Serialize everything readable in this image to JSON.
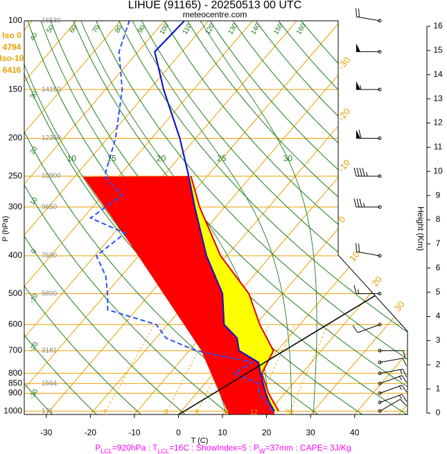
{
  "chart_data": {
    "type": "skewt",
    "title": "LIHUE (91165) - 20250513 00 UTC",
    "subtitle": "meteocentre.com",
    "ylabel": "P (hPa)",
    "xlabel": "T (C)",
    "y2label": "Height (Km)",
    "log_y": true,
    "ylim": [
      100,
      1020
    ],
    "yticks": [
      100,
      150,
      200,
      250,
      300,
      400,
      500,
      600,
      700,
      800,
      850,
      900,
      1000
    ],
    "isobar_heights": [
      16530,
      14150,
      12360,
      10900,
      9650,
      7590,
      5890,
      null,
      3181,
      null,
      1564,
      null,
      171
    ],
    "xlim": [
      -35,
      52
    ],
    "xticks": [
      -30,
      -20,
      -10,
      0,
      10,
      20,
      30,
      40
    ],
    "y2lim": [
      0,
      16
    ],
    "y2ticks": [
      0,
      1,
      2,
      3,
      4,
      5,
      6,
      7,
      8,
      9,
      10,
      11,
      12,
      13,
      14,
      15,
      16
    ],
    "iso_levels": [
      {
        "label": "Iso 0",
        "height": 4794
      },
      {
        "label": "Iso-10",
        "height": 6416
      }
    ],
    "isotherms": [
      -110,
      -100,
      -90,
      -80,
      -70,
      -60,
      -50,
      -40,
      -30,
      -20,
      -10,
      0,
      10,
      20,
      30,
      40,
      50
    ],
    "dry_adiabats": [
      -30,
      -20,
      -10,
      0,
      10,
      20,
      30,
      40,
      50,
      60,
      70,
      80,
      90,
      100,
      110,
      120,
      130,
      140,
      150,
      160
    ],
    "moist_adiabats": [
      10,
      15,
      20,
      25,
      30
    ],
    "mixing_ratios": [
      1,
      3,
      5,
      8,
      12,
      20
    ],
    "temperature": {
      "color": "#1414c8",
      "pressure": [
        1000,
        950,
        900,
        850,
        800,
        750,
        700,
        650,
        600,
        500,
        400,
        300,
        250,
        200,
        150,
        120,
        100
      ],
      "values": [
        21.1,
        18.3,
        15.7,
        13.2,
        10.6,
        8.0,
        1.3,
        -1.6,
        -7.2,
        -13.6,
        -24.6,
        -36.8,
        -44.2,
        -53.6,
        -66.8,
        -76.2,
        -75.5
      ]
    },
    "dewpoint": {
      "color": "#2850ff",
      "pressure": [
        1000,
        950,
        900,
        850,
        800,
        750,
        700,
        650,
        600,
        550,
        500,
        450,
        400,
        350,
        320,
        280,
        250,
        200,
        150,
        120,
        100
      ],
      "values": [
        20.8,
        17.6,
        14.2,
        12.1,
        4.6,
        6.6,
        -8.5,
        -17.7,
        -22.6,
        -36.5,
        -39.7,
        -43.6,
        -49.6,
        -47.5,
        -58.3,
        -55.6,
        -63.3,
        -68.2,
        -76.2,
        -84.3,
        -88.0
      ]
    },
    "parcel": {
      "color": "#e00000",
      "pressure": [
        1000,
        900,
        800,
        700,
        600,
        500,
        400,
        300,
        250
      ],
      "values": [
        22.1,
        16.3,
        10.9,
        9.1,
        0.9,
        -7.6,
        -21.4,
        -35.7,
        -43.7
      ]
    },
    "winds": {
      "pressure": [
        1000,
        950,
        900,
        850,
        800,
        750,
        700,
        600,
        500,
        400,
        300,
        250,
        200,
        150,
        120,
        100
      ],
      "direction": [
        60,
        70,
        70,
        70,
        80,
        80,
        90,
        250,
        270,
        280,
        270,
        270,
        270,
        270,
        270,
        280
      ],
      "speed": [
        10,
        15,
        15,
        15,
        15,
        10,
        10,
        10,
        15,
        20,
        35,
        45,
        60,
        55,
        50,
        20
      ]
    },
    "footer": [
      {
        "symbol": "P",
        "subscript": "LCL",
        "text": "=920hPa : "
      },
      {
        "symbol": "T",
        "subscript": "LCL",
        "text": "=16C : "
      },
      {
        "text": "ShowIndex=5 : "
      },
      {
        "symbol": "P",
        "subscript": "W",
        "text": "=37mm : "
      },
      {
        "text": "CAPE= 3J/Kg"
      }
    ]
  }
}
